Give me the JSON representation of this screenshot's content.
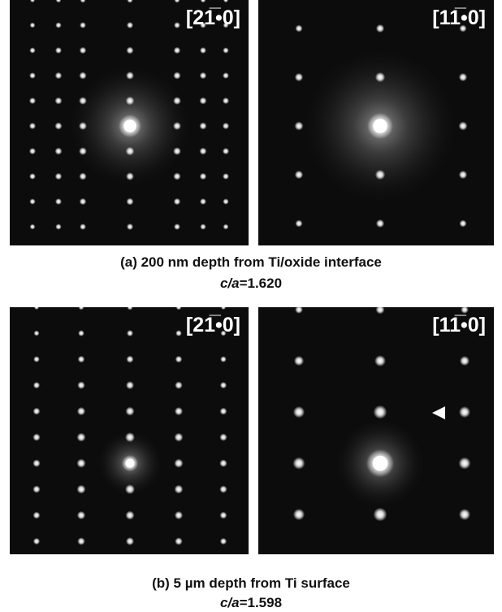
{
  "figure": {
    "panels": [
      {
        "label": "[21̅•0]"
      },
      {
        "label": "[11̅•0]"
      },
      {
        "label": "[21̅•0]"
      },
      {
        "label": "[11̅•0]"
      }
    ],
    "captions": [
      {
        "text": "(a) 200 nm depth from Ti/oxide interface",
        "ratio_label": "c/a",
        "ratio_value": "=1.620"
      },
      {
        "text": "(b) 5 µm depth from Ti surface",
        "ratio_label": "c/a",
        "ratio_value": "=1.598"
      }
    ]
  }
}
